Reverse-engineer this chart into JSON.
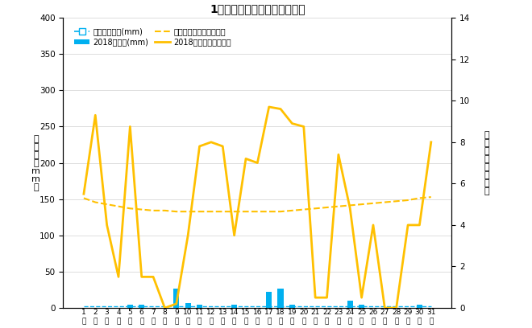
{
  "title": "1月降水量・日照時間（日別）",
  "days": [
    1,
    2,
    3,
    4,
    5,
    6,
    7,
    8,
    9,
    10,
    11,
    12,
    13,
    14,
    15,
    16,
    17,
    18,
    19,
    20,
    21,
    22,
    23,
    24,
    25,
    26,
    27,
    28,
    29,
    30,
    31
  ],
  "day_labels": [
    "1",
    "2",
    "3",
    "4",
    "5",
    "6",
    "7",
    "8",
    "9",
    "10",
    "11",
    "12",
    "13",
    "14",
    "15",
    "16",
    "17",
    "18",
    "19",
    "20",
    "21",
    "22",
    "23",
    "24",
    "25",
    "26",
    "27",
    "28",
    "29",
    "30",
    "31"
  ],
  "precip_2018": [
    0,
    0,
    0,
    0,
    5,
    5,
    0,
    0,
    27,
    7,
    5,
    0,
    0,
    5,
    0,
    0,
    22,
    27,
    5,
    0,
    0,
    0,
    0,
    10,
    5,
    0,
    0,
    0,
    0,
    5,
    0
  ],
  "precip_avg": [
    2,
    2,
    2,
    2,
    2,
    2,
    2,
    2,
    2,
    2,
    2,
    2,
    2,
    2,
    2,
    2,
    2,
    2,
    2,
    2,
    2,
    2,
    2,
    2,
    2,
    2,
    2,
    2,
    2,
    2,
    2
  ],
  "sunshine_2018": [
    5.5,
    9.3,
    4.0,
    1.5,
    8.75,
    1.5,
    1.5,
    0.0,
    0.2,
    3.5,
    7.8,
    8.0,
    7.8,
    3.5,
    7.2,
    7.0,
    9.7,
    9.6,
    8.9,
    8.75,
    0.5,
    0.5,
    7.4,
    4.8,
    0.5,
    4.0,
    0.0,
    0.0,
    4.0,
    4.0,
    8.0
  ],
  "sunshine_avg_values": [
    5.3,
    5.1,
    5.0,
    4.9,
    4.8,
    4.75,
    4.7,
    4.7,
    4.65,
    4.65,
    4.65,
    4.65,
    4.65,
    4.65,
    4.65,
    4.65,
    4.65,
    4.65,
    4.7,
    4.75,
    4.8,
    4.85,
    4.9,
    4.95,
    5.0,
    5.05,
    5.1,
    5.15,
    5.2,
    5.3,
    5.35
  ],
  "precip_color": "#00B0F0",
  "precip_avg_color": "#00B0F0",
  "sunshine_color": "#FFC000",
  "sunshine_avg_color": "#FFC000",
  "ylabel_left": "降\n水\n量\n（\nm\nm\n）",
  "ylabel_right": "日\n照\n時\n間\n（\n時\n間\n）",
  "ylim_left": [
    0,
    400
  ],
  "ylim_right": [
    0,
    14
  ],
  "yticks_left": [
    0,
    50,
    100,
    150,
    200,
    250,
    300,
    350,
    400
  ],
  "yticks_right": [
    0,
    2,
    4,
    6,
    8,
    10,
    12,
    14
  ],
  "bg_color": "#FFFFFF",
  "legend_labels": [
    "降水量平年値(mm)",
    "2018降水量(mm)",
    "日照時間平年値（時間）",
    "2018日照時間（時間）"
  ]
}
